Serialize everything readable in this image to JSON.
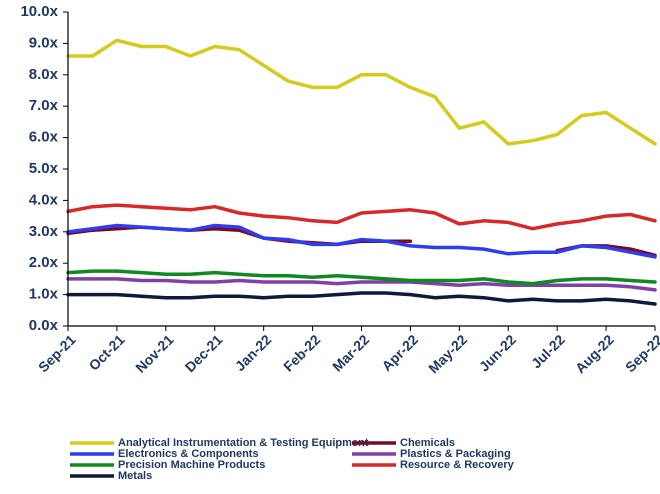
{
  "chart_data": {
    "type": "line",
    "categories": [
      "Sep-21",
      null,
      "Oct-21",
      null,
      "Nov-21",
      null,
      "Dec-21",
      null,
      "Jan-22",
      null,
      "Feb-22",
      null,
      "Mar-22",
      null,
      "Apr-22",
      null,
      "May-22",
      null,
      "Jun-22",
      null,
      "Jul-22",
      null,
      "Aug-22",
      null,
      "Sep-22"
    ],
    "ylim": [
      0,
      10
    ],
    "yticks": [
      {
        "value": 0,
        "label": "0.0x"
      },
      {
        "value": 1,
        "label": "1.0x"
      },
      {
        "value": 2,
        "label": "2.0x"
      },
      {
        "value": 3,
        "label": "3.0x"
      },
      {
        "value": 4,
        "label": "4.0x"
      },
      {
        "value": 5,
        "label": "5.0x"
      },
      {
        "value": 6,
        "label": "6.0x"
      },
      {
        "value": 7,
        "label": "7.0x"
      },
      {
        "value": 8,
        "label": "8.0x"
      },
      {
        "value": 9,
        "label": "9.0x"
      },
      {
        "value": 10,
        "label": "10.0x"
      }
    ],
    "grid": false,
    "legend": "bottom",
    "series": [
      {
        "name": "Analytical Instrumentation & Testing Equipment",
        "color": "#d4cc1a",
        "values": [
          8.6,
          8.6,
          9.1,
          8.9,
          8.9,
          8.6,
          8.9,
          8.8,
          8.3,
          7.8,
          7.6,
          7.6,
          8.0,
          8.0,
          7.6,
          7.3,
          6.3,
          6.5,
          5.8,
          5.9,
          6.1,
          6.7,
          6.8,
          6.3,
          5.8
        ]
      },
      {
        "name": "Chemicals",
        "color": "#7a0a24",
        "values": [
          2.95,
          3.05,
          3.1,
          3.15,
          3.1,
          3.05,
          3.1,
          3.05,
          2.8,
          2.7,
          2.65,
          2.6,
          2.7,
          2.7,
          2.7,
          null,
          null,
          null,
          null,
          null,
          2.4,
          2.55,
          2.55,
          2.45,
          2.25
        ]
      },
      {
        "name": "Electronics & Components",
        "color": "#2f3df0",
        "values": [
          3.0,
          3.1,
          3.2,
          3.15,
          3.1,
          3.05,
          3.2,
          3.15,
          2.8,
          2.75,
          2.6,
          2.6,
          2.75,
          2.7,
          2.55,
          2.5,
          2.5,
          2.45,
          2.3,
          2.35,
          2.35,
          2.55,
          2.5,
          2.35,
          2.2
        ]
      },
      {
        "name": "Plastics & Packaging",
        "color": "#8040a8",
        "values": [
          1.5,
          1.5,
          1.5,
          1.45,
          1.45,
          1.4,
          1.4,
          1.45,
          1.4,
          1.4,
          1.4,
          1.35,
          1.4,
          1.4,
          1.4,
          1.35,
          1.3,
          1.35,
          1.3,
          1.3,
          1.3,
          1.3,
          1.3,
          1.25,
          1.15
        ]
      },
      {
        "name": "Precision Machine Products",
        "color": "#0f8a1e",
        "values": [
          1.7,
          1.75,
          1.75,
          1.7,
          1.65,
          1.65,
          1.7,
          1.65,
          1.6,
          1.6,
          1.55,
          1.6,
          1.55,
          1.5,
          1.45,
          1.45,
          1.45,
          1.5,
          1.4,
          1.35,
          1.45,
          1.5,
          1.5,
          1.45,
          1.4
        ]
      },
      {
        "name": "Resource & Recovery",
        "color": "#d82828",
        "values": [
          3.65,
          3.8,
          3.85,
          3.8,
          3.75,
          3.7,
          3.8,
          3.6,
          3.5,
          3.45,
          3.35,
          3.3,
          3.6,
          3.65,
          3.7,
          3.6,
          3.25,
          3.35,
          3.3,
          3.1,
          3.25,
          3.35,
          3.5,
          3.55,
          3.35
        ]
      },
      {
        "name": "Metals",
        "color": "#0e1a3c",
        "values": [
          1.0,
          1.0,
          1.0,
          0.95,
          0.9,
          0.9,
          0.95,
          0.95,
          0.9,
          0.95,
          0.95,
          1.0,
          1.05,
          1.05,
          1.0,
          0.9,
          0.95,
          0.9,
          0.8,
          0.85,
          0.8,
          0.8,
          0.85,
          0.8,
          0.7
        ]
      }
    ]
  }
}
